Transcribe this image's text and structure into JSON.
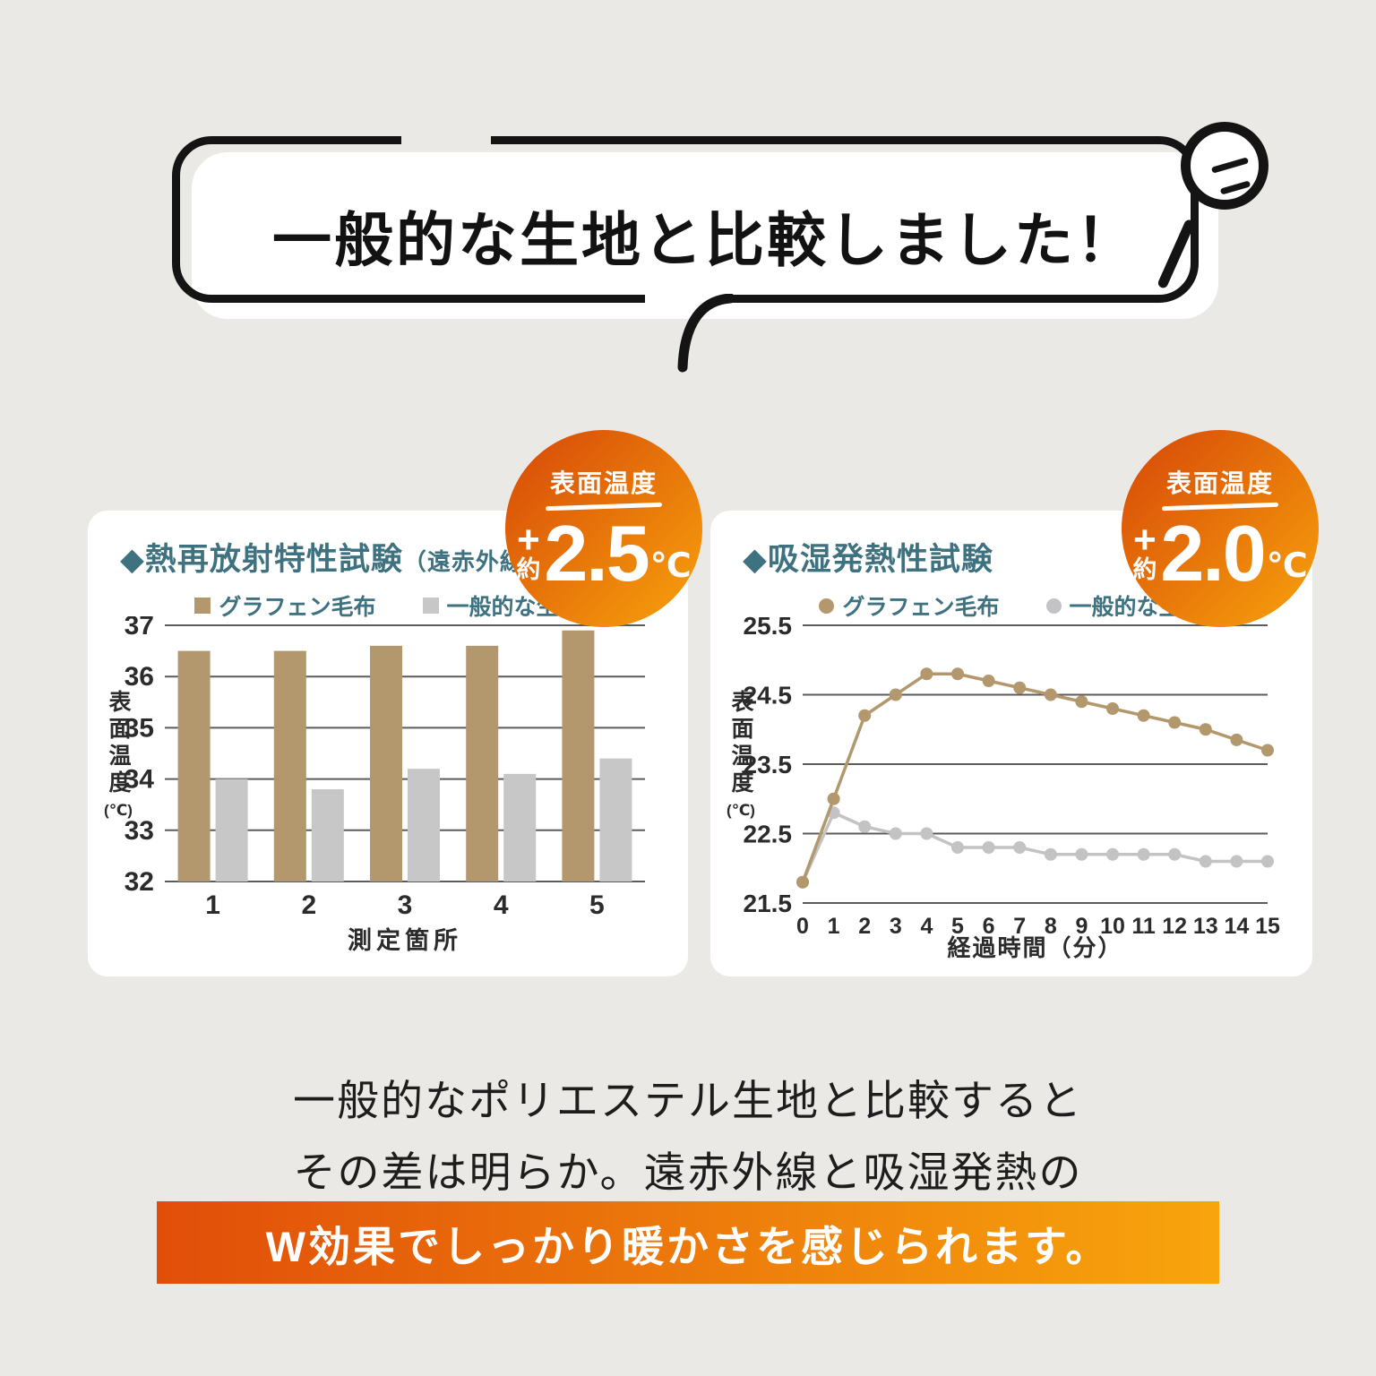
{
  "colors": {
    "bg": "#eae9e5",
    "ink": "#141414",
    "teal": "#3e7280",
    "badge_g1": "#d64708",
    "badge_g2": "#f8a30c",
    "band_g1": "#e14e09",
    "band_g2": "#f8a50d",
    "axis_text": "#2b2b2b",
    "gridline": "#5c5c5c"
  },
  "speech_bubble": {
    "text": "一般的な生地と比較しました！",
    "icon": "magnifier-icon"
  },
  "badges": [
    {
      "heading": "表面温度",
      "plus": "+",
      "approx": "約",
      "value": "2.5",
      "unit": "℃"
    },
    {
      "heading": "表面温度",
      "plus": "+",
      "approx": "約",
      "value": "2.0",
      "unit": "℃"
    }
  ],
  "chart_data": [
    {
      "type": "bar",
      "title": "◆熱再放射特性試験",
      "title_suffix": "（遠赤外線）",
      "marker": "square",
      "categories": [
        "1",
        "2",
        "3",
        "4",
        "5"
      ],
      "series": [
        {
          "name": "グラフェン毛布",
          "color": "#b3976d",
          "values": [
            36.5,
            36.5,
            36.6,
            36.6,
            36.9
          ]
        },
        {
          "name": "一般的な生地",
          "color": "#c7c7c7",
          "values": [
            34.0,
            33.8,
            34.2,
            34.1,
            34.4
          ]
        }
      ],
      "xlabel": "測定箇所",
      "ylabel": "表面温度",
      "ylabel_unit": "(℃)",
      "ylim": [
        32,
        37
      ],
      "yticks": [
        37,
        36,
        35,
        34,
        33,
        32
      ],
      "grid": "horizontal",
      "legend_position": "top"
    },
    {
      "type": "line",
      "title": "◆吸湿発熱性試験",
      "title_suffix": "",
      "marker": "circle",
      "x": [
        "0",
        "1",
        "2",
        "3",
        "4",
        "5",
        "6",
        "7",
        "8",
        "9",
        "10",
        "11",
        "12",
        "13",
        "14",
        "15"
      ],
      "series": [
        {
          "name": "グラフェン毛布",
          "color": "#b3976d",
          "values": [
            21.8,
            23.0,
            24.2,
            24.5,
            24.8,
            24.8,
            24.7,
            24.6,
            24.5,
            24.4,
            24.3,
            24.2,
            24.1,
            24.0,
            23.85,
            23.7
          ]
        },
        {
          "name": "一般的な生地",
          "color": "#c3c3c5",
          "values": [
            21.8,
            22.8,
            22.6,
            22.5,
            22.5,
            22.3,
            22.3,
            22.3,
            22.2,
            22.2,
            22.2,
            22.2,
            22.2,
            22.1,
            22.1,
            22.1
          ]
        }
      ],
      "xlabel": "経過時間（分）",
      "ylabel": "表面温度",
      "ylabel_unit": "(℃)",
      "ylim": [
        21.5,
        25.5
      ],
      "yticks": [
        25.5,
        24.5,
        23.5,
        22.5,
        21.5
      ],
      "grid": "horizontal",
      "legend_position": "top"
    }
  ],
  "footer": {
    "line1": "一般的なポリエステル生地と比較すると",
    "line2": "その差は明らか。遠赤外線と吸湿発熱の",
    "highlight": "W効果でしっかり暖かさを感じられます。"
  }
}
